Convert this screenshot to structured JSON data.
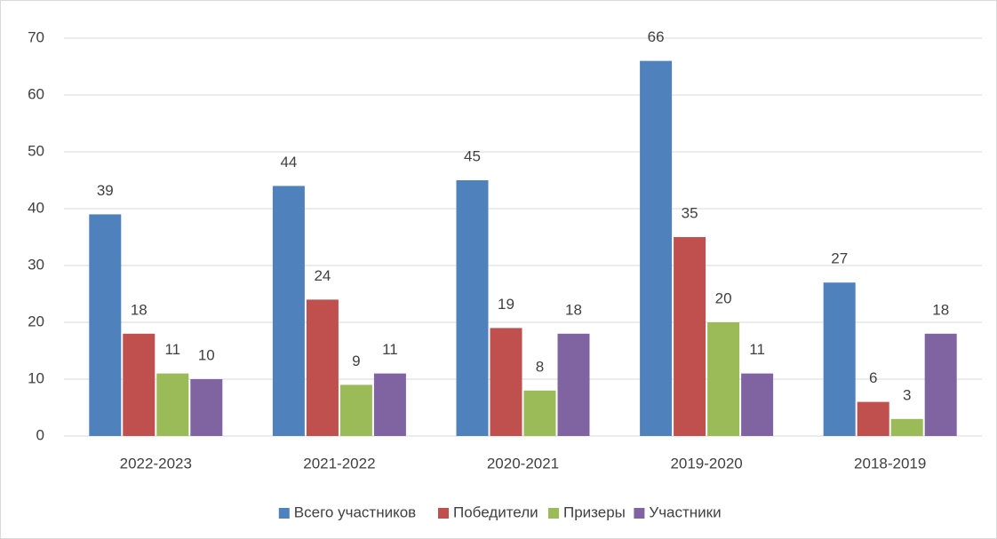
{
  "chart_data": {
    "type": "bar",
    "categories": [
      "2022-2023",
      "2021-2022",
      "2020-2021",
      "2019-2020",
      "2018-2019"
    ],
    "series": [
      {
        "name": "Всего участников",
        "color": "#4f81bd",
        "values": [
          39,
          44,
          45,
          66,
          27
        ]
      },
      {
        "name": "Победители",
        "color": "#c0504d",
        "values": [
          18,
          24,
          19,
          35,
          6
        ]
      },
      {
        "name": "Призеры",
        "color": "#9bbb59",
        "values": [
          11,
          9,
          8,
          20,
          3
        ]
      },
      {
        "name": "Участники",
        "color": "#8064a2",
        "values": [
          10,
          11,
          18,
          11,
          18
        ]
      }
    ],
    "ylim": [
      0,
      70
    ],
    "yticks": [
      0,
      10,
      20,
      30,
      40,
      50,
      60,
      70
    ],
    "grid": true,
    "legend": "bottom"
  }
}
